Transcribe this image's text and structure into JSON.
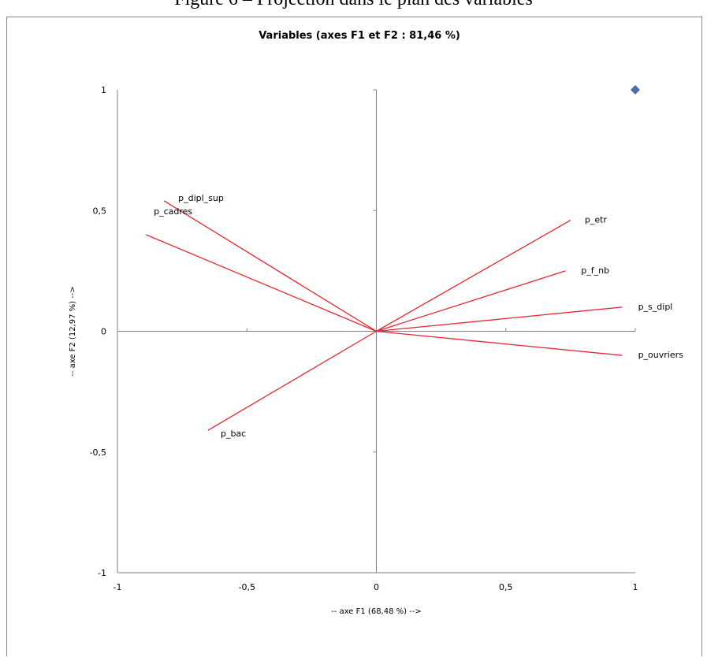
{
  "caption": "Figure 6 – Projection dans le plan des variables",
  "chart_data": {
    "type": "scatter",
    "title": "Variables (axes F1 et F2 : 81,46 %)",
    "xlabel": "-- axe F1 (68,48 %) -->",
    "ylabel": "-- axe F2 (12,97 %) -->",
    "xlim": [
      -1,
      1
    ],
    "ylim": [
      -1,
      1
    ],
    "x_ticks": [
      "-1",
      "-0,5",
      "0",
      "0,5",
      "1"
    ],
    "y_ticks": [
      "-1",
      "-0,5",
      "0",
      "0,5",
      "1"
    ],
    "grid": false,
    "series": [
      {
        "variables": [
          {
            "label": "p_dipl_sup",
            "x": -0.82,
            "y": 0.54
          },
          {
            "label": "p_cadres",
            "x": -0.89,
            "y": 0.4
          },
          {
            "label": "p_etr",
            "x": 0.75,
            "y": 0.46
          },
          {
            "label": "p_f_nb",
            "x": 0.73,
            "y": 0.25
          },
          {
            "label": "p_s_dipl",
            "x": 0.95,
            "y": 0.1
          },
          {
            "label": "p_ouvriers",
            "x": 0.95,
            "y": -0.1
          },
          {
            "label": "p_bac",
            "x": -0.65,
            "y": -0.41
          }
        ]
      }
    ],
    "marker": {
      "x": 1,
      "y": 1
    },
    "colors": {
      "vectors": "#e8262e",
      "axes": "#7f7f7f",
      "marker": "#4a6fa5"
    }
  }
}
